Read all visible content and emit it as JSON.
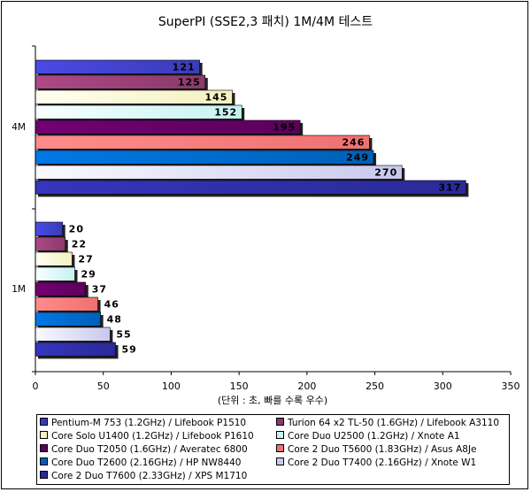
{
  "chart_data": {
    "type": "bar",
    "orientation": "horizontal",
    "title": "SuperPI (SSE2,3 패치) 1M/4M 테스트",
    "xlabel": "(단위 : 초, 빠를 수록 우수)",
    "ylabel": "",
    "xlim": [
      0,
      350
    ],
    "xticks": [
      0,
      50,
      100,
      150,
      200,
      250,
      300,
      350
    ],
    "categories": [
      "4M",
      "1M"
    ],
    "grid": false,
    "legend_position": "bottom",
    "series": [
      {
        "name": "Pentium-M 753 (1.2GHz) / Lifebook P1510",
        "color": "#3b3bb8",
        "values": [
          121,
          20
        ]
      },
      {
        "name": "Turion 64 x2 TL-50 (1.6GHz) / Lifebook A3110",
        "color": "#8a3a6c",
        "values": [
          125,
          22
        ]
      },
      {
        "name": "Core Solo U1400 (1.2GHz) / Lifebook P1610",
        "color": "#f4f0c0",
        "values": [
          145,
          27
        ]
      },
      {
        "name": "Core Duo U2500 (1.2GHz) / Xnote A1",
        "color": "#c6f2f2",
        "values": [
          152,
          29
        ]
      },
      {
        "name": "Core Duo T2050 (1.6GHz) / Averatec 6800",
        "color": "#5c005c",
        "values": [
          195,
          37
        ]
      },
      {
        "name": "Core 2 Duo T5600 (1.83GHz) / Asus A8Je",
        "color": "#f07070",
        "values": [
          246,
          46
        ]
      },
      {
        "name": "Core Duo T2600 (2.16GHz) / HP NW8440",
        "color": "#0060b8",
        "values": [
          249,
          48
        ]
      },
      {
        "name": "Core 2 Duo T7400 (2.16GHz) / Xnote W1",
        "color": "#c8c8ee",
        "values": [
          270,
          55
        ]
      },
      {
        "name": "Core 2 Duo T7600 (2.33GHz) / XPS M1710",
        "color": "#2a2a98",
        "values": [
          317,
          59
        ]
      }
    ]
  }
}
